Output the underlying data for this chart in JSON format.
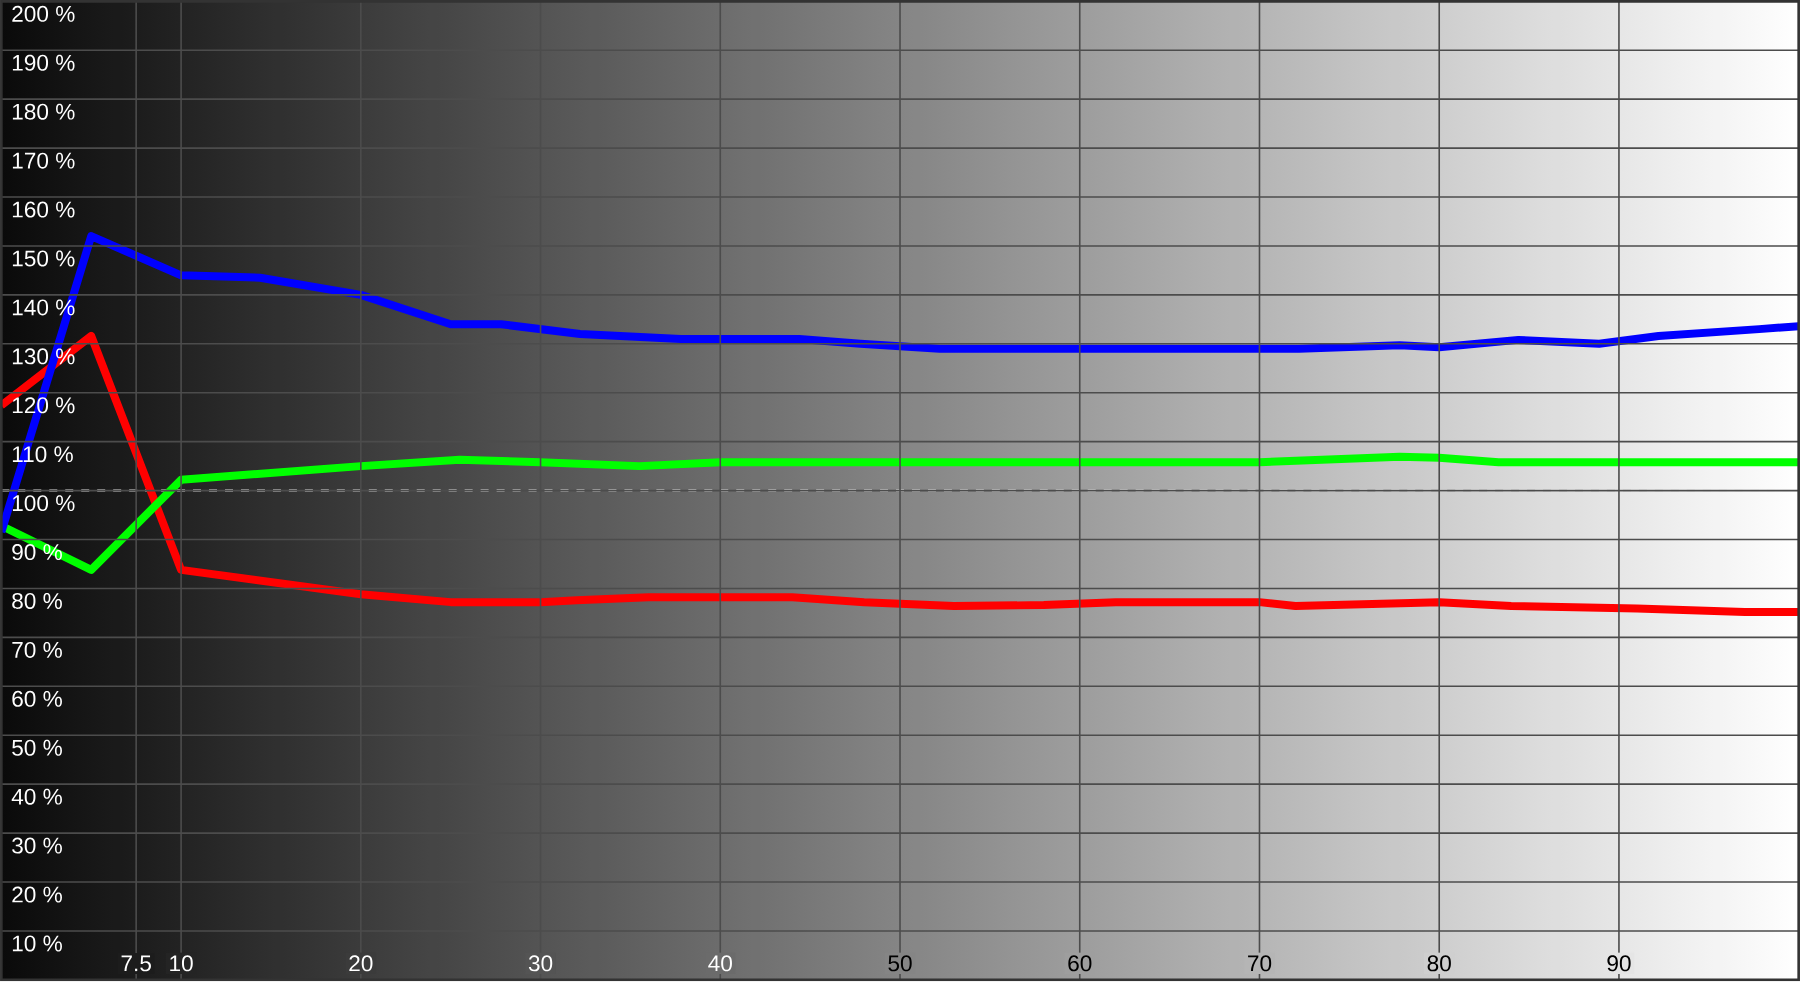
{
  "chart_data": {
    "type": "line",
    "xlim": [
      0,
      100
    ],
    "ylim": [
      0,
      200
    ],
    "xticks": [
      7.5,
      10,
      20,
      30,
      40,
      50,
      60,
      70,
      80,
      90
    ],
    "yticks": [
      {
        "value": 10,
        "label": "10 %"
      },
      {
        "value": 20,
        "label": "20 %"
      },
      {
        "value": 30,
        "label": "30 %"
      },
      {
        "value": 40,
        "label": "40 %"
      },
      {
        "value": 50,
        "label": "50 %"
      },
      {
        "value": 60,
        "label": "60 %"
      },
      {
        "value": 70,
        "label": "70 %"
      },
      {
        "value": 80,
        "label": "80 %"
      },
      {
        "value": 90,
        "label": "90 %"
      },
      {
        "value": 100,
        "label": "100 %"
      },
      {
        "value": 110,
        "label": "110 %"
      },
      {
        "value": 120,
        "label": "120 %"
      },
      {
        "value": 130,
        "label": "130 %"
      },
      {
        "value": 140,
        "label": "140 %"
      },
      {
        "value": 150,
        "label": "150 %"
      },
      {
        "value": 160,
        "label": "160 %"
      },
      {
        "value": 170,
        "label": "170 %"
      },
      {
        "value": 180,
        "label": "180 %"
      },
      {
        "value": 190,
        "label": "190 %"
      },
      {
        "value": 200,
        "label": "200 %"
      }
    ],
    "grid": true,
    "marker": "none",
    "line_style": "solid",
    "ref_lines": [
      {
        "axis": "y",
        "value": 100,
        "color": "#ffffff",
        "line_style": "dashed"
      }
    ],
    "series": [
      {
        "color": "#ff0000",
        "x": [
          0,
          5,
          10,
          20,
          25,
          30,
          32,
          36,
          44,
          48,
          53,
          58,
          62,
          70,
          72,
          80,
          84,
          91,
          97,
          100
        ],
        "values": [
          117.4,
          131.6,
          83.8,
          78.8,
          77.2,
          77.2,
          77.6,
          78.2,
          78.2,
          77.2,
          76.4,
          76.6,
          77.2,
          77.2,
          76.4,
          77.2,
          76.4,
          75.9,
          75.2,
          75.2
        ]
      },
      {
        "color": "#00ff00",
        "x": [
          0,
          5,
          10,
          20,
          25.5,
          30,
          35.5,
          40,
          60,
          70,
          77.8,
          80,
          83.3,
          100
        ],
        "values": [
          92.8,
          83.8,
          102.2,
          105,
          106.3,
          105.8,
          105,
          105.8,
          105.8,
          105.8,
          106.9,
          106.7,
          105.8,
          105.8
        ]
      },
      {
        "color": "#0000ff",
        "x": [
          0,
          5,
          10,
          14.4,
          20,
          25,
          27.8,
          32.2,
          37.8,
          44.4,
          47.8,
          52.2,
          57.8,
          72.2,
          77.8,
          80,
          84.4,
          88.9,
          92.2,
          97.8,
          100
        ],
        "values": [
          91.5,
          152,
          144,
          143.5,
          140,
          134,
          134,
          132,
          131,
          131,
          130,
          129,
          129,
          129,
          129.7,
          129.3,
          130.8,
          130,
          131.6,
          133,
          133.6
        ]
      }
    ]
  }
}
